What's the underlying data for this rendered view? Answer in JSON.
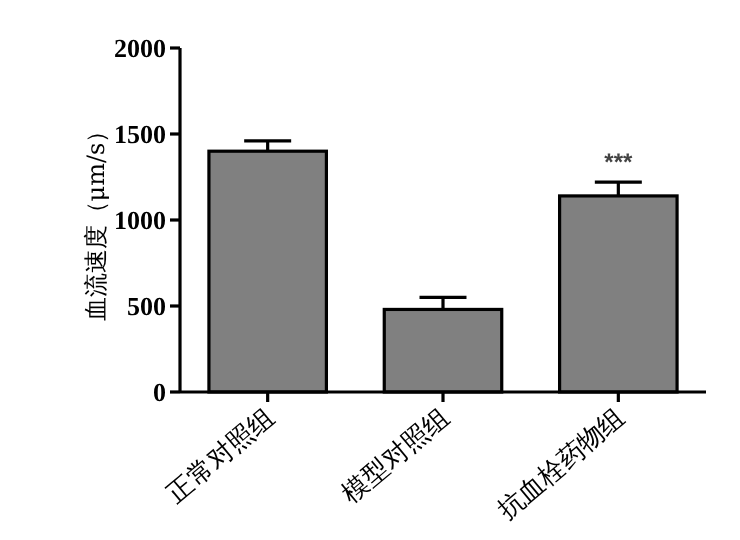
{
  "chart_data": {
    "type": "bar",
    "ylabel": "血流速度（μm/s）",
    "categories": [
      "正常对照组",
      "模型对照组",
      "抗血栓药物组"
    ],
    "values": [
      1400,
      480,
      1140
    ],
    "color": "#808080",
    "errors": [
      [
        1400,
        1460
      ],
      [
        480,
        550
      ],
      [
        1140,
        1220
      ]
    ],
    "ylim": [
      0,
      2000
    ],
    "yticks": [
      0,
      500,
      1000,
      1500,
      2000
    ],
    "grid": false,
    "annotations": [
      {
        "text": "***",
        "x": "抗血栓药物组",
        "y": 1220
      }
    ]
  }
}
